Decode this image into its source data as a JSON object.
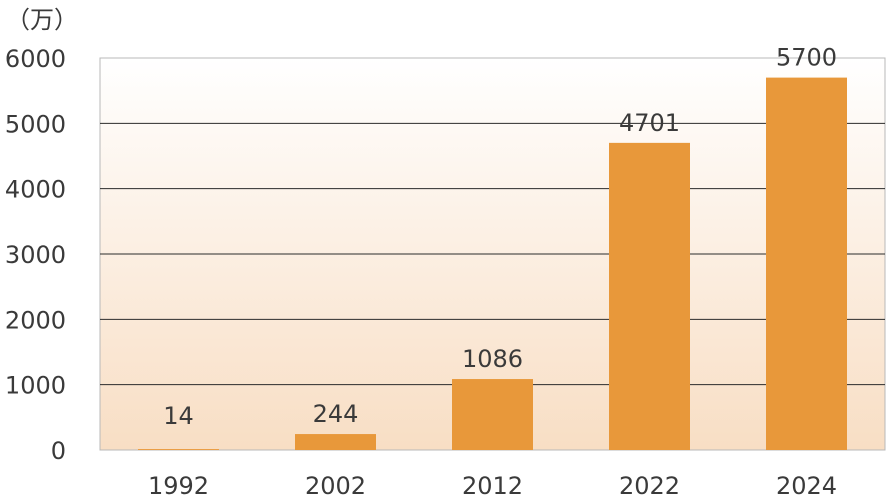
{
  "chart_data": {
    "type": "bar",
    "unit_label": "（万）",
    "categories": [
      "1992",
      "2002",
      "2012",
      "2022",
      "2024"
    ],
    "values": [
      14,
      244,
      1086,
      4701,
      5700
    ],
    "data_labels": [
      "14",
      "244",
      "1086",
      "4701",
      "5700"
    ],
    "y_ticks": [
      "0",
      "1000",
      "2000",
      "3000",
      "4000",
      "5000",
      "6000"
    ],
    "ylim": [
      0,
      6000
    ],
    "grid": true,
    "legend": "none",
    "colors": {
      "bar": "#E8983A",
      "background_top": "#FFFFFF",
      "background_bottom": "#F8DEC4",
      "grid": "#2b2b2b"
    }
  }
}
